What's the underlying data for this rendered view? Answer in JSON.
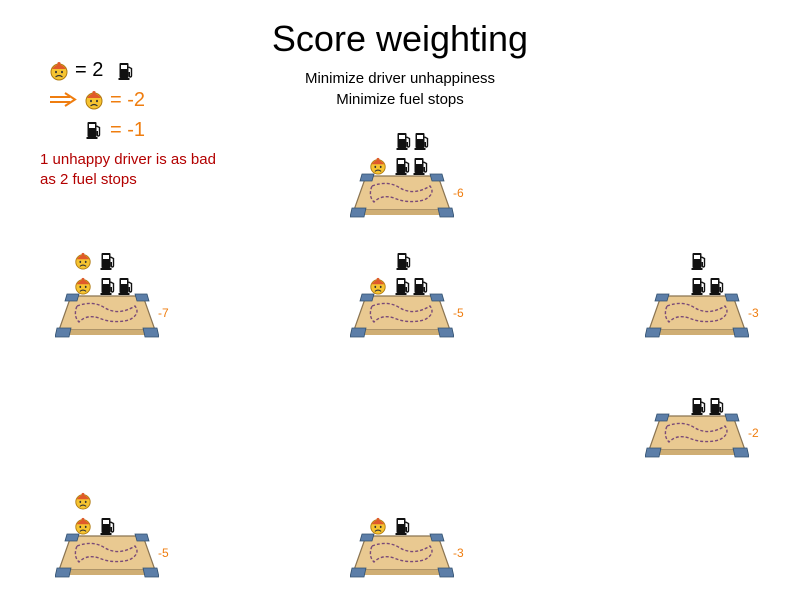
{
  "title": "Score weighting",
  "subtitle_lines": [
    "Minimize driver unhappiness",
    "Minimize fuel stops"
  ],
  "legend": {
    "weight_line": "= 2",
    "driver_score": "= -2",
    "fuel_score": "= -1",
    "note_lines": [
      "1 unhappy driver is as bad",
      "as 2 fuel stops"
    ]
  },
  "colors": {
    "accent": "#ef7d0f",
    "note": "#b30000"
  },
  "solutions": [
    {
      "score": "-6",
      "rows": [
        [
          "fuel",
          "fuel"
        ],
        [
          "driver",
          "fuel",
          "fuel"
        ]
      ]
    },
    {
      "score": "-7",
      "rows": [
        [
          "driver",
          "fuel"
        ],
        [
          "driver",
          "fuel",
          "fuel"
        ]
      ]
    },
    {
      "score": "-5",
      "rows": [
        [
          "fuel"
        ],
        [
          "driver",
          "fuel",
          "fuel"
        ]
      ]
    },
    {
      "score": "-3",
      "rows": [
        [
          "fuel"
        ],
        [
          "fuel",
          "fuel"
        ]
      ]
    },
    {
      "score": "-2",
      "rows": [
        [
          "fuel",
          "fuel"
        ]
      ]
    },
    {
      "score": "-5",
      "rows": [
        [
          "driver"
        ],
        [
          "driver",
          "fuel"
        ]
      ]
    },
    {
      "score": "-3",
      "rows": [
        [
          "driver",
          "fuel"
        ]
      ]
    }
  ]
}
